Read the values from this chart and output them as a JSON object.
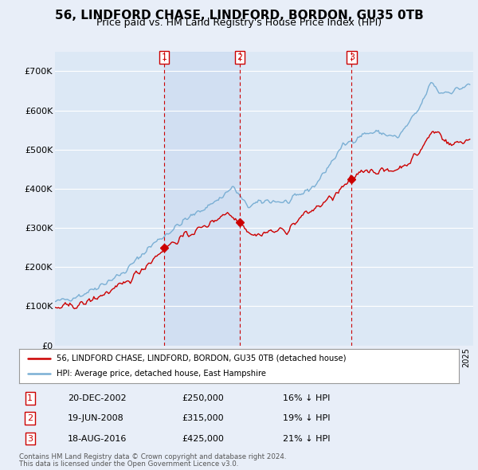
{
  "title": "56, LINDFORD CHASE, LINDFORD, BORDON, GU35 0TB",
  "subtitle": "Price paid vs. HM Land Registry's House Price Index (HPI)",
  "title_fontsize": 11,
  "subtitle_fontsize": 9,
  "ylabel_ticks": [
    "£0",
    "£100K",
    "£200K",
    "£300K",
    "£400K",
    "£500K",
    "£600K",
    "£700K"
  ],
  "ytick_vals": [
    0,
    100000,
    200000,
    300000,
    400000,
    500000,
    600000,
    700000
  ],
  "ylim": [
    0,
    750000
  ],
  "xlim_start": 1995.0,
  "xlim_end": 2025.5,
  "background_color": "#e8eef8",
  "plot_bg_color": "#dce8f5",
  "grid_color": "#ffffff",
  "red_line_color": "#cc0000",
  "blue_line_color": "#7aafd4",
  "vline_color": "#cc0000",
  "shade_color": "#c8d8f0",
  "transactions": [
    {
      "num": 1,
      "date_label": "20-DEC-2002",
      "price": 250000,
      "pct": "16%",
      "x": 2002.97
    },
    {
      "num": 2,
      "date_label": "19-JUN-2008",
      "price": 315000,
      "pct": "19%",
      "x": 2008.47
    },
    {
      "num": 3,
      "date_label": "18-AUG-2016",
      "price": 425000,
      "pct": "21%",
      "x": 2016.63
    }
  ],
  "legend_line1": "56, LINDFORD CHASE, LINDFORD, BORDON, GU35 0TB (detached house)",
  "legend_line2": "HPI: Average price, detached house, East Hampshire",
  "footer1": "Contains HM Land Registry data © Crown copyright and database right 2024.",
  "footer2": "This data is licensed under the Open Government Licence v3.0."
}
